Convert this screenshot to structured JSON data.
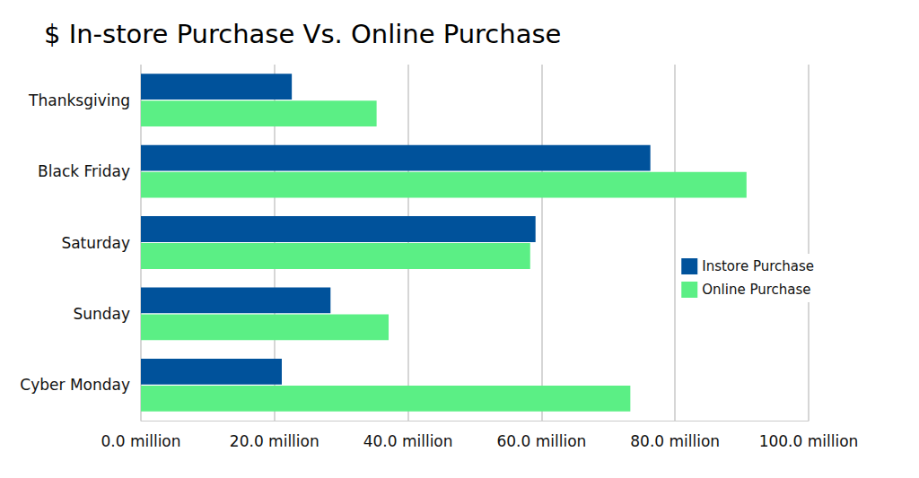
{
  "chart_data": {
    "type": "bar",
    "orientation": "horizontal",
    "title": "$ In-store Purchase Vs. Online Purchase",
    "categories": [
      "Thanksgiving",
      "Black Friday",
      "Saturday",
      "Sunday",
      "Cyber Monday"
    ],
    "series": [
      {
        "name": "Instore Purchase",
        "color": "#00529b",
        "values": [
          22.6,
          76.3,
          59.1,
          28.4,
          21.1
        ]
      },
      {
        "name": "Online Purchase",
        "color": "#5bef85",
        "values": [
          35.3,
          90.7,
          58.3,
          37.1,
          73.3
        ]
      }
    ],
    "xlim": [
      0,
      100
    ],
    "xticks": [
      {
        "value": 0,
        "label": "0.0 million"
      },
      {
        "value": 20,
        "label": "20.0 million"
      },
      {
        "value": 40,
        "label": "40.0 million"
      },
      {
        "value": 60,
        "label": "60.0 million"
      },
      {
        "value": 80,
        "label": "80.0 million"
      },
      {
        "value": 100,
        "label": "100.0 million"
      }
    ],
    "grid": true,
    "legend": "right"
  }
}
